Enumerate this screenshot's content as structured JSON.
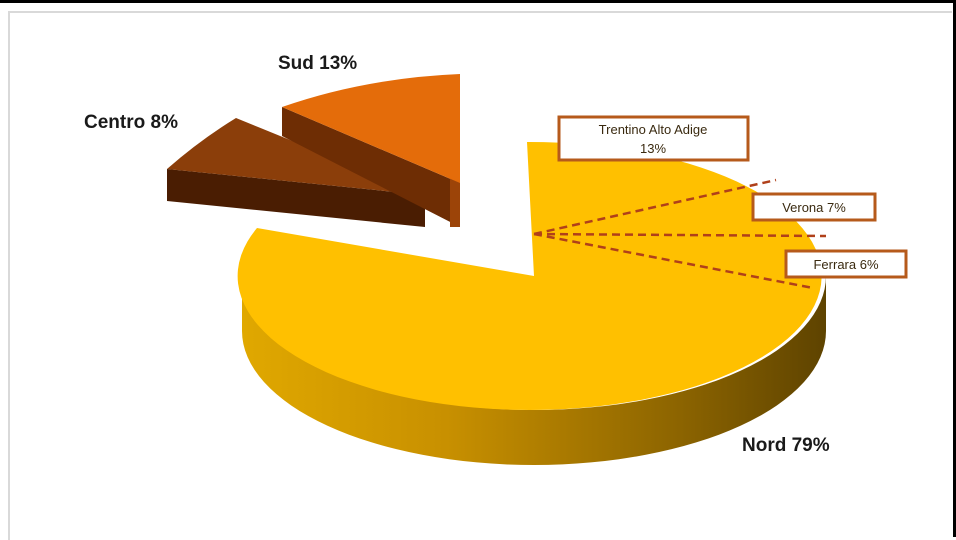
{
  "chart_data": {
    "type": "pie",
    "three_d": true,
    "exploded": true,
    "slices": [
      {
        "label": "Nord",
        "value": 79,
        "display": "Nord 79%",
        "color": "#ffc000"
      },
      {
        "label": "Centro",
        "value": 8,
        "display": "Centro 8%",
        "color": "#8b3e0a"
      },
      {
        "label": "Sud",
        "value": 13,
        "display": "Sud  13%",
        "color": "#e46c0a"
      }
    ],
    "breakdown_of": "Nord",
    "breakdown": [
      {
        "label": "Trentino Alto Adige",
        "value_text": "13%",
        "value": 13
      },
      {
        "label": "Verona",
        "value_text": "7%",
        "value": 7,
        "display": "Verona 7%"
      },
      {
        "label": "Ferrara",
        "value_text": "6%",
        "value": 6,
        "display": "Ferrara 6%"
      }
    ],
    "callout_border_color": "#b65a1b",
    "leader_line_color": "#b0401a"
  }
}
